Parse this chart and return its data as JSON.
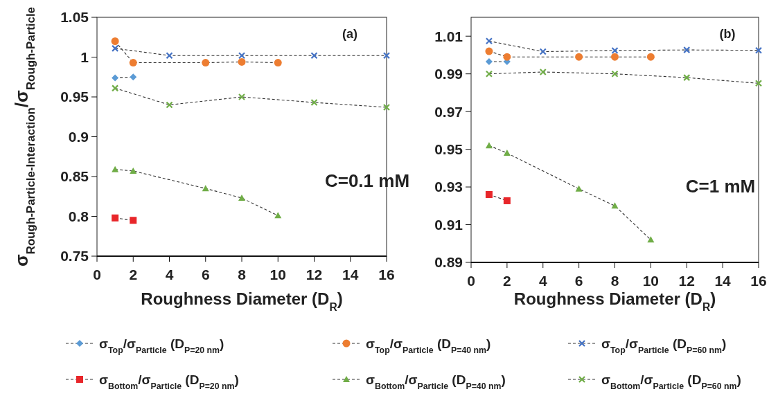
{
  "chart_data": [
    {
      "type": "line",
      "xlabel": "Roughness Diameter (D$_{R}$)",
      "ylabel": "σ$_{Rough-Particle-Interaction}$/σ$_{Rough-Particle}$",
      "annotations": [
        "(a)",
        "C=0.1 mM"
      ],
      "xlim": [
        0,
        16
      ],
      "xticks": [
        0,
        2,
        4,
        6,
        8,
        10,
        12,
        14,
        16
      ],
      "ylim": [
        0.75,
        1.05
      ],
      "yticks": [
        0.75,
        0.8,
        0.85,
        0.9,
        0.95,
        1,
        1.05
      ],
      "grid": false,
      "legend": "bottom",
      "line_style": "dashed",
      "series": [
        {
          "name": "σ$_{Top}$/σ$_{Particle}$ (D$_{P=20 nm}$)",
          "color": "#5b9bd5",
          "marker": "diamond",
          "x": [
            1,
            2
          ],
          "values": [
            0.974,
            0.975
          ]
        },
        {
          "name": "σ$_{Top}$/σ$_{Particle}$ (D$_{P=40 nm}$)",
          "color": "#ed7d31",
          "marker": "circle",
          "x": [
            1,
            2,
            6,
            8,
            10
          ],
          "values": [
            1.02,
            0.993,
            0.993,
            0.994,
            0.993
          ]
        },
        {
          "name": "σ$_{Top}$/σ$_{Particle}$ (D$_{P=60 nm}$)",
          "color": "#4472c4",
          "marker": "cross",
          "x": [
            1,
            4,
            8,
            12,
            16
          ],
          "values": [
            1.011,
            1.002,
            1.002,
            1.002,
            1.002
          ]
        },
        {
          "name": "σ$_{Bottom}$/σ$_{Particle}$ (D$_{P=20 nm}$)",
          "color": "#e8262a",
          "marker": "square",
          "x": [
            1,
            2
          ],
          "values": [
            0.798,
            0.795
          ]
        },
        {
          "name": "σ$_{Bottom}$/σ$_{Particle}$ (D$_{P=40 nm}$)",
          "color": "#70ad47",
          "marker": "triangle",
          "x": [
            1,
            2,
            6,
            8,
            10
          ],
          "values": [
            0.859,
            0.857,
            0.835,
            0.823,
            0.801
          ]
        },
        {
          "name": "σ$_{Bottom}$/σ$_{Particle}$ (D$_{P=60 nm}$)",
          "color": "#70ad47",
          "marker": "cross",
          "x": [
            1,
            4,
            8,
            12,
            16
          ],
          "values": [
            0.961,
            0.94,
            0.95,
            0.943,
            0.937
          ]
        }
      ]
    },
    {
      "type": "line",
      "xlabel": "Roughness Diameter (D$_{R}$)",
      "annotations": [
        "(b)",
        "C=1 mM"
      ],
      "xlim": [
        0,
        16
      ],
      "xticks": [
        0,
        2,
        4,
        6,
        8,
        10,
        12,
        14,
        16
      ],
      "ylim": [
        0.89,
        1.02
      ],
      "yticks": [
        0.89,
        0.91,
        0.93,
        0.95,
        0.97,
        0.99,
        1.01
      ],
      "grid": false,
      "line_style": "dashed",
      "series": [
        {
          "color": "#5b9bd5",
          "marker": "diamond",
          "x": [
            1,
            2
          ],
          "values": [
            0.9965,
            0.9965
          ]
        },
        {
          "color": "#ed7d31",
          "marker": "circle",
          "x": [
            1,
            2,
            6,
            8,
            10
          ],
          "values": [
            1.002,
            0.999,
            0.999,
            0.999,
            0.999
          ]
        },
        {
          "color": "#4472c4",
          "marker": "cross",
          "x": [
            1,
            4,
            8,
            12,
            16
          ],
          "values": [
            1.0074,
            1.0018,
            1.0024,
            1.0027,
            1.0025
          ]
        },
        {
          "color": "#e8262a",
          "marker": "square",
          "x": [
            1,
            2
          ],
          "values": [
            0.926,
            0.9227
          ]
        },
        {
          "color": "#70ad47",
          "marker": "triangle",
          "x": [
            1,
            2,
            6,
            8,
            10
          ],
          "values": [
            0.952,
            0.948,
            0.929,
            0.92,
            0.902
          ]
        },
        {
          "color": "#70ad47",
          "marker": "cross",
          "x": [
            1,
            4,
            8,
            12,
            16
          ],
          "values": [
            0.99,
            0.991,
            0.99,
            0.988,
            0.985
          ]
        }
      ]
    }
  ]
}
